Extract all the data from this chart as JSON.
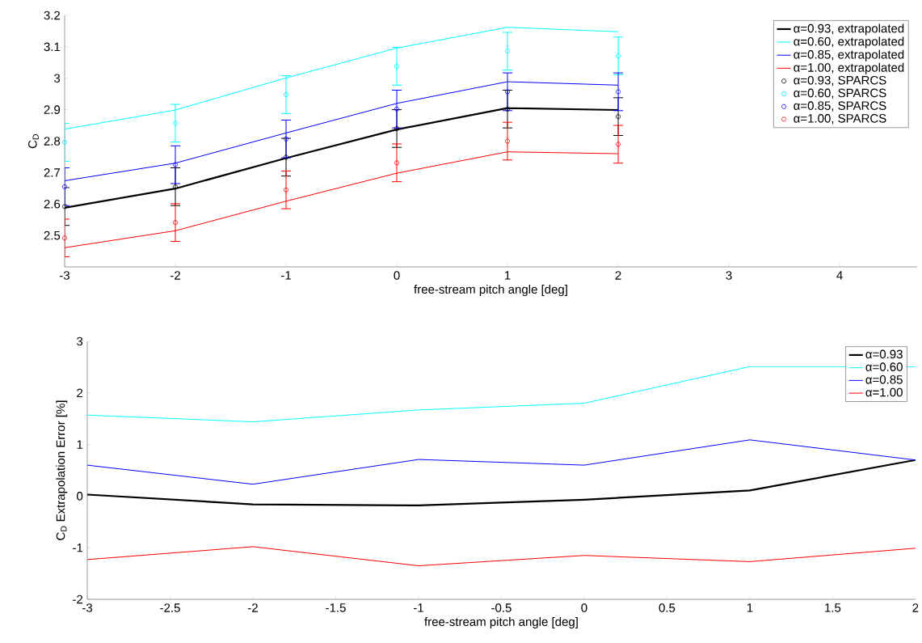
{
  "chart_data": [
    {
      "type": "line",
      "xlabel": "free-stream pitch angle [deg]",
      "ylabel": "C$_{D}$",
      "x": [
        -3,
        -2,
        -1,
        0,
        1,
        2
      ],
      "xlim": [
        -3,
        4.7
      ],
      "ylim": [
        2.4,
        3.2
      ],
      "xticks": [
        -3,
        -2,
        -1,
        0,
        1,
        2,
        3,
        4
      ],
      "yticks": [
        2.5,
        2.6,
        2.7,
        2.8,
        2.9,
        3,
        3.1,
        3.2
      ],
      "legend": "top right",
      "grid": false,
      "series": [
        {
          "name": "α=0.93, extrapolated",
          "color": "#000000",
          "values": [
            2.588,
            2.649,
            2.746,
            2.837,
            2.905,
            2.899
          ]
        },
        {
          "name": "α=0.60, extrapolated",
          "color": "#00ffff",
          "values": [
            2.838,
            2.899,
            3.001,
            3.096,
            3.162,
            3.148
          ]
        },
        {
          "name": "α=0.85, extrapolated",
          "color": "#0000ff",
          "values": [
            2.674,
            2.73,
            2.826,
            2.92,
            2.989,
            2.978
          ]
        },
        {
          "name": "α=1.00, extrapolated",
          "color": "#ff0000",
          "values": [
            2.461,
            2.515,
            2.609,
            2.698,
            2.766,
            2.76
          ]
        },
        {
          "name": "α=0.93, SPARCS",
          "type": "scatter",
          "marker": "circle",
          "color": "#000000",
          "values": [
            2.592,
            2.655,
            2.749,
            2.84,
            2.902,
            2.878
          ],
          "errors": [
            0.06,
            0.06,
            0.06,
            0.06,
            0.06,
            0.06
          ]
        },
        {
          "name": "α=0.60, SPARCS",
          "type": "scatter",
          "marker": "circle",
          "color": "#00ffff",
          "values": [
            2.796,
            2.857,
            2.948,
            3.038,
            3.086,
            3.071
          ],
          "errors": [
            0.06,
            0.06,
            0.06,
            0.06,
            0.06,
            0.06
          ]
        },
        {
          "name": "α=0.85, SPARCS",
          "type": "scatter",
          "marker": "circle",
          "color": "#0000ff",
          "values": [
            2.655,
            2.725,
            2.807,
            2.902,
            2.957,
            2.957
          ],
          "errors": [
            0.06,
            0.06,
            0.06,
            0.06,
            0.06,
            0.06
          ]
        },
        {
          "name": "α=1.00, SPARCS",
          "type": "scatter",
          "marker": "circle",
          "color": "#ff0000",
          "values": [
            2.492,
            2.541,
            2.645,
            2.731,
            2.8,
            2.79
          ],
          "errors": [
            0.06,
            0.06,
            0.06,
            0.06,
            0.06,
            0.06
          ]
        }
      ]
    },
    {
      "type": "line",
      "xlabel": "free-stream pitch angle [deg]",
      "ylabel": "C$_{D}$ Extrapolation Error [%]",
      "x": [
        -3,
        -2,
        -1,
        0,
        1,
        2
      ],
      "xlim": [
        -3,
        2
      ],
      "ylim": [
        -2,
        3
      ],
      "xticks": [
        -3,
        -2.5,
        -2,
        -1.5,
        -1,
        -0.5,
        0,
        0.5,
        1,
        1.5,
        2
      ],
      "yticks": [
        -2,
        -1,
        0,
        1,
        2,
        3
      ],
      "legend": "top right",
      "grid": false,
      "series": [
        {
          "name": "α=0.93",
          "color": "#000000",
          "values": [
            0.03,
            -0.16,
            -0.18,
            -0.07,
            0.11,
            0.7
          ]
        },
        {
          "name": "α=0.60",
          "color": "#00ffff",
          "values": [
            1.57,
            1.44,
            1.67,
            1.8,
            2.51,
            2.51
          ]
        },
        {
          "name": "α=0.85",
          "color": "#0000ff",
          "values": [
            0.6,
            0.23,
            0.71,
            0.6,
            1.09,
            0.7
          ]
        },
        {
          "name": "α=1.00",
          "color": "#ff0000",
          "values": [
            -1.23,
            -0.98,
            -1.35,
            -1.15,
            -1.27,
            -1.01
          ]
        }
      ]
    }
  ]
}
